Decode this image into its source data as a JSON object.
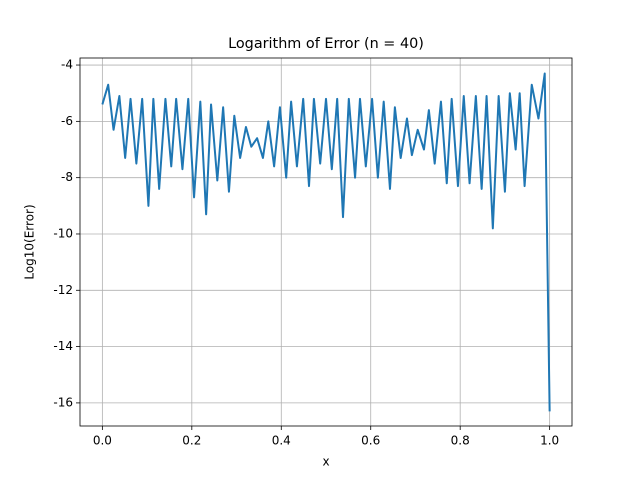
{
  "chart_data": {
    "type": "line",
    "title": "Logarithm of Error (n = 40)",
    "x_label": "x",
    "y_label": "Log10(Error)",
    "x": [
      0,
      0.013,
      0.025,
      0.038,
      0.051,
      0.063,
      0.076,
      0.089,
      0.103,
      0.114,
      0.127,
      0.141,
      0.154,
      0.165,
      0.179,
      0.192,
      0.205,
      0.219,
      0.232,
      0.243,
      0.257,
      0.27,
      0.283,
      0.295,
      0.308,
      0.321,
      0.333,
      0.346,
      0.359,
      0.371,
      0.384,
      0.397,
      0.411,
      0.422,
      0.435,
      0.449,
      0.462,
      0.473,
      0.487,
      0.5,
      0.513,
      0.525,
      0.538,
      0.551,
      0.565,
      0.576,
      0.589,
      0.603,
      0.616,
      0.629,
      0.643,
      0.654,
      0.667,
      0.681,
      0.692,
      0.705,
      0.719,
      0.73,
      0.743,
      0.757,
      0.77,
      0.781,
      0.795,
      0.808,
      0.821,
      0.835,
      0.848,
      0.859,
      0.873,
      0.886,
      0.9,
      0.911,
      0.924,
      0.933,
      0.944,
      0.96,
      0.975,
      0.989,
      1.0
    ],
    "series": [
      {
        "color": "#1f77b4",
        "values": [
          -5.4,
          -4.7,
          -6.3,
          -5.1,
          -7.3,
          -5.2,
          -7.5,
          -5.2,
          -9.0,
          -5.2,
          -8.4,
          -5.2,
          -7.6,
          -5.2,
          -7.7,
          -5.2,
          -8.7,
          -5.3,
          -9.3,
          -5.4,
          -8.1,
          -5.5,
          -8.5,
          -5.8,
          -7.3,
          -6.2,
          -6.9,
          -6.6,
          -7.3,
          -6.0,
          -7.6,
          -5.5,
          -8.0,
          -5.3,
          -7.6,
          -5.2,
          -8.3,
          -5.2,
          -7.5,
          -5.2,
          -7.7,
          -5.2,
          -9.4,
          -5.2,
          -8.0,
          -5.2,
          -7.6,
          -5.2,
          -8.0,
          -5.3,
          -8.4,
          -5.5,
          -7.3,
          -5.9,
          -7.2,
          -6.3,
          -7.0,
          -5.6,
          -7.5,
          -5.3,
          -8.2,
          -5.2,
          -8.3,
          -5.1,
          -8.2,
          -5.1,
          -8.4,
          -5.1,
          -9.8,
          -5.1,
          -8.5,
          -5.0,
          -7.0,
          -5.0,
          -8.3,
          -4.7,
          -5.9,
          -4.3,
          -16.3
        ]
      }
    ],
    "xlim": [
      -0.05,
      1.05
    ],
    "ylim": [
      -16.82,
      -3.75
    ],
    "xticks": [
      {
        "value": 0,
        "label": "0.0"
      },
      {
        "value": 0.2,
        "label": "0.2"
      },
      {
        "value": 0.4,
        "label": "0.4"
      },
      {
        "value": 0.6,
        "label": "0.6"
      },
      {
        "value": 0.8,
        "label": "0.8"
      },
      {
        "value": 1,
        "label": "1.0"
      }
    ],
    "yticks": [
      -4,
      -6,
      -8,
      -10,
      -12,
      -14,
      -16
    ],
    "grid": true
  }
}
